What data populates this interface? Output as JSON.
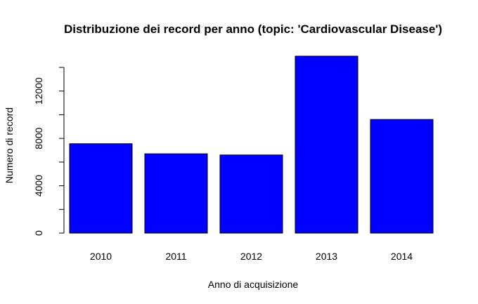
{
  "chart_data": {
    "type": "bar",
    "title": "Distribuzione dei record per anno (topic: 'Cardiovascular Disease')",
    "xlabel": "Anno di acquisizione",
    "ylabel": "Numero di record",
    "categories": [
      "2010",
      "2011",
      "2012",
      "2013",
      "2014"
    ],
    "values": [
      7550,
      6700,
      6600,
      14950,
      9600
    ],
    "ylim": [
      0,
      14000
    ],
    "yticks": [
      0,
      4000,
      8000,
      12000
    ],
    "yminor_ticks": [
      2000,
      6000,
      10000,
      14000
    ],
    "bar_color": "#0000ff",
    "grid": false,
    "legend": "none"
  }
}
